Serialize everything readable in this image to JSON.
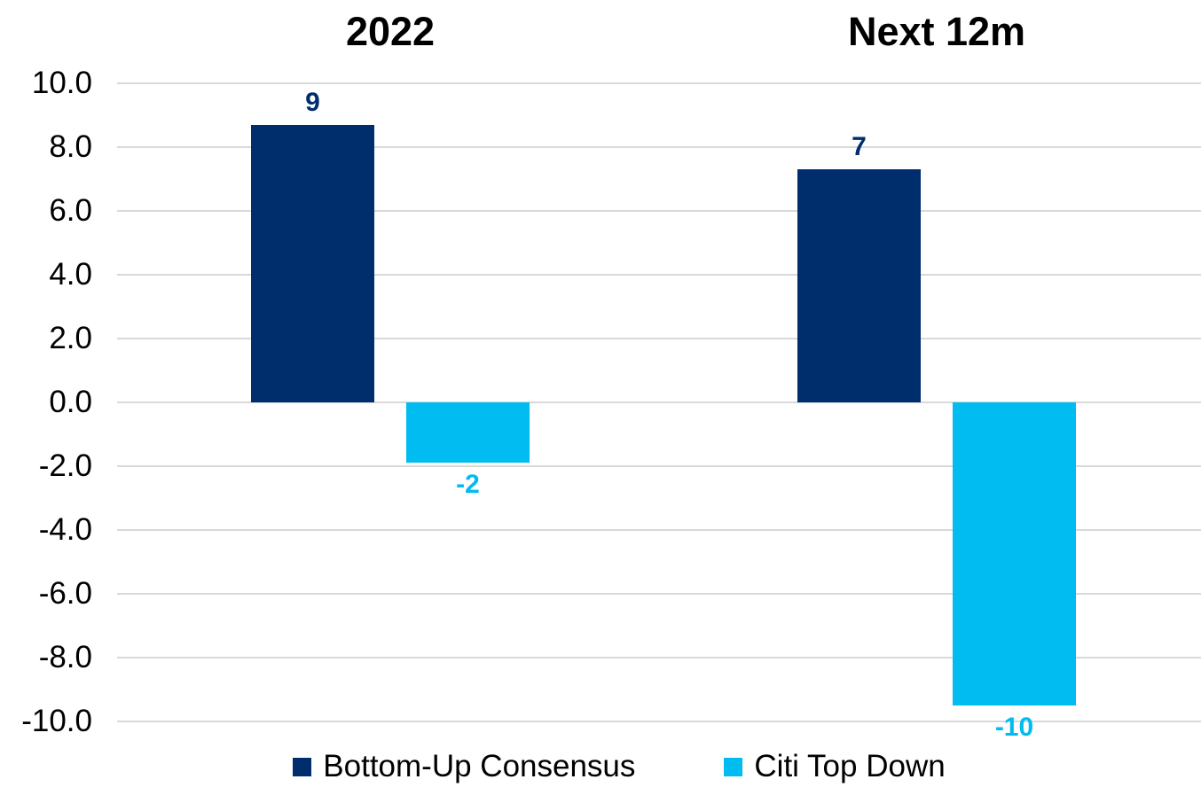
{
  "chart_data": {
    "type": "bar",
    "panel_titles": [
      "2022",
      "Next 12m"
    ],
    "categories": [
      "2022",
      "Next 12m"
    ],
    "series": [
      {
        "name": "Bottom-Up Consensus",
        "color": "#002e6c",
        "values": [
          8.7,
          7.3
        ],
        "data_labels": [
          "9",
          "7"
        ]
      },
      {
        "name": "Citi Top Down",
        "color": "#00bcf0",
        "values": [
          -1.9,
          -9.5
        ],
        "data_labels": [
          "-2",
          "-10"
        ]
      }
    ],
    "y_axis": {
      "min": -10,
      "max": 10,
      "step": 2,
      "tick_labels": [
        "10.0",
        "8.0",
        "6.0",
        "4.0",
        "2.0",
        "0.0",
        "-2.0",
        "-4.0",
        "-6.0",
        "-8.0",
        "-10.0"
      ]
    },
    "grid": true,
    "gridline_color": "#d9d9d9",
    "legend_position": "bottom",
    "background": "#ffffff"
  }
}
